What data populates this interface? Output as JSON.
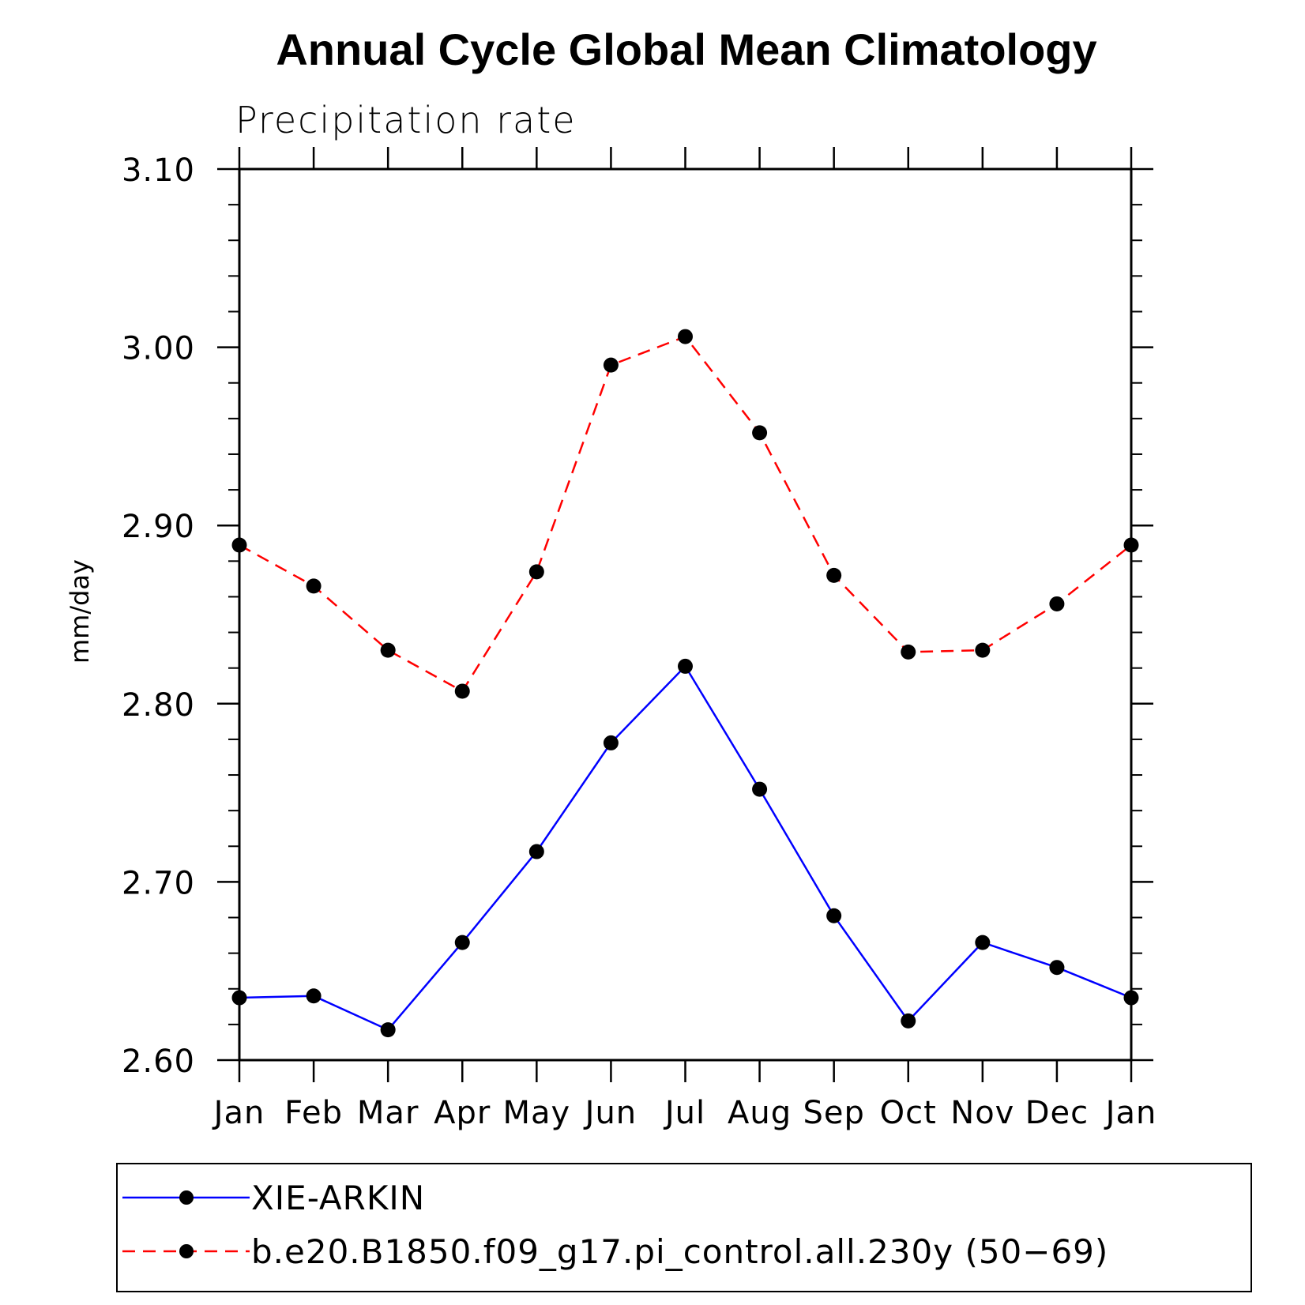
{
  "chart_data": {
    "type": "line",
    "title": "Annual Cycle Global Mean Climatology",
    "subtitle": "Precipitation rate",
    "xlabel": "",
    "ylabel": "mm/day",
    "categories": [
      "Jan",
      "Feb",
      "Mar",
      "Apr",
      "May",
      "Jun",
      "Jul",
      "Aug",
      "Sep",
      "Oct",
      "Nov",
      "Dec",
      "Jan"
    ],
    "ylim": [
      2.6,
      3.1
    ],
    "yticks": [
      "2.60",
      "2.70",
      "2.80",
      "2.90",
      "3.00",
      "3.10"
    ],
    "ytick_values": [
      2.6,
      2.7,
      2.8,
      2.9,
      3.0,
      3.1
    ],
    "grid": false,
    "legend_position": "bottom",
    "series": [
      {
        "name": "XIE-ARKIN",
        "color": "#0000ff",
        "line_style": "solid",
        "marker": "filled-circle",
        "values": [
          2.635,
          2.636,
          2.617,
          2.666,
          2.717,
          2.778,
          2.821,
          2.752,
          2.681,
          2.622,
          2.666,
          2.652,
          2.635
        ]
      },
      {
        "name": "b.e20.B1850.f09_g17.pi_control.all.230y (50−69)",
        "color": "#ff0000",
        "line_style": "dashed",
        "marker": "filled-circle",
        "values": [
          2.889,
          2.866,
          2.83,
          2.807,
          2.874,
          2.99,
          3.006,
          2.952,
          2.872,
          2.829,
          2.83,
          2.856,
          2.889
        ]
      }
    ]
  }
}
